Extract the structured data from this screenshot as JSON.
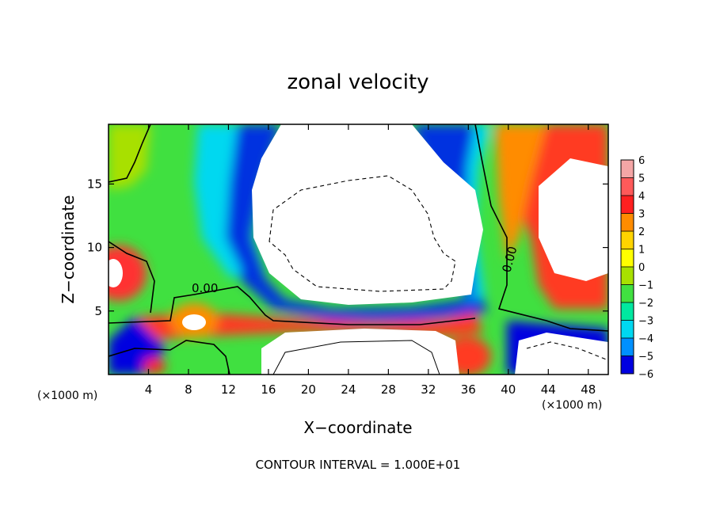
{
  "chart_data": {
    "type": "heatmap",
    "title": "zonal velocity",
    "xlabel": "X−coordinate",
    "ylabel": "Z−coordinate",
    "x_unit": "(×1000 m)",
    "z_unit": "(×1000 m)",
    "xlim": [
      0,
      50
    ],
    "ylim": [
      0,
      19.7
    ],
    "x_ticks": [
      4,
      8,
      12,
      16,
      20,
      24,
      28,
      32,
      36,
      40,
      44,
      48
    ],
    "y_ticks": [
      5,
      10,
      15
    ],
    "colorbar": {
      "levels": [
        6,
        5,
        4,
        3,
        2,
        1,
        0,
        -1,
        -2,
        -3,
        -4,
        -5,
        -6
      ],
      "tick_labels": [
        "6",
        "5",
        "4",
        "3",
        "2",
        "1",
        "0",
        "−1",
        "−2",
        "−3",
        "−4",
        "−5",
        "−6"
      ],
      "colors": [
        "#f4a6a6",
        "#ff5a5a",
        "#ff2020",
        "#ff8c00",
        "#ffd400",
        "#ffff00",
        "#a8e000",
        "#40e040",
        "#00e8a0",
        "#00d8f0",
        "#0090ff",
        "#0000e0",
        "#8000b0"
      ]
    },
    "contour_labels": [
      "0.00",
      "0.00"
    ],
    "contour_interval_text": "CONTOUR INTERVAL = 1.000E+01"
  }
}
